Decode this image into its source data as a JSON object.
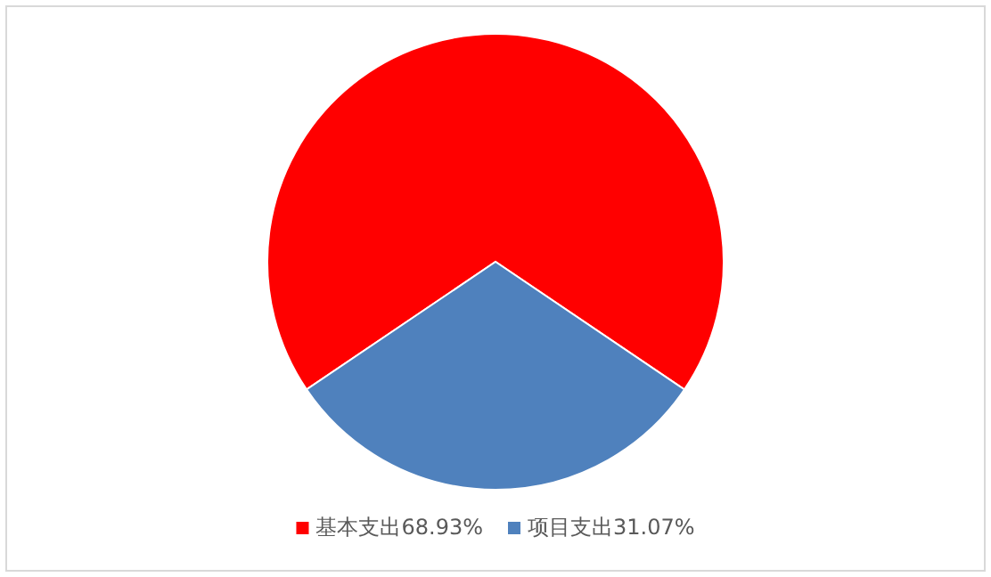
{
  "chart_data": {
    "type": "pie",
    "categories": [
      "基本支出",
      "项目支出"
    ],
    "values": [
      68.93,
      31.07
    ],
    "colors": [
      "#ff0000",
      "#4f81bd"
    ],
    "value_labels": [
      "68.93%",
      "31.07%"
    ],
    "legend": "bottom"
  }
}
